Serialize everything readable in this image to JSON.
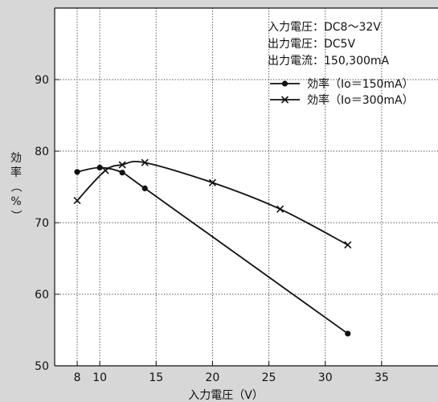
{
  "chart_data": {
    "type": "line",
    "xlabel": "入力電圧（V）",
    "ylabel": "効率（%）",
    "xlim": [
      6,
      40
    ],
    "ylim": [
      50,
      100
    ],
    "x_ticks": [
      8,
      10,
      15,
      20,
      25,
      30,
      35
    ],
    "y_ticks": [
      50,
      60,
      70,
      80,
      90
    ],
    "grid": true,
    "legend_placement": "top-right",
    "annotations": [
      "入力電圧：DC8～32V",
      "出力電圧：DC5V",
      "出力電流：150,300mA"
    ],
    "series": [
      {
        "name": "効率（Io＝150mA）",
        "marker": "dot",
        "x": [
          8,
          10,
          12,
          14,
          32
        ],
        "y": [
          77.1,
          77.7,
          77.0,
          74.8,
          54.5
        ]
      },
      {
        "name": "効率（Io＝300mA）",
        "marker": "cross",
        "x": [
          8,
          10.5,
          12,
          14,
          20,
          26,
          32
        ],
        "y": [
          73.1,
          77.3,
          78.1,
          78.4,
          75.6,
          71.9,
          66.9
        ]
      }
    ]
  }
}
